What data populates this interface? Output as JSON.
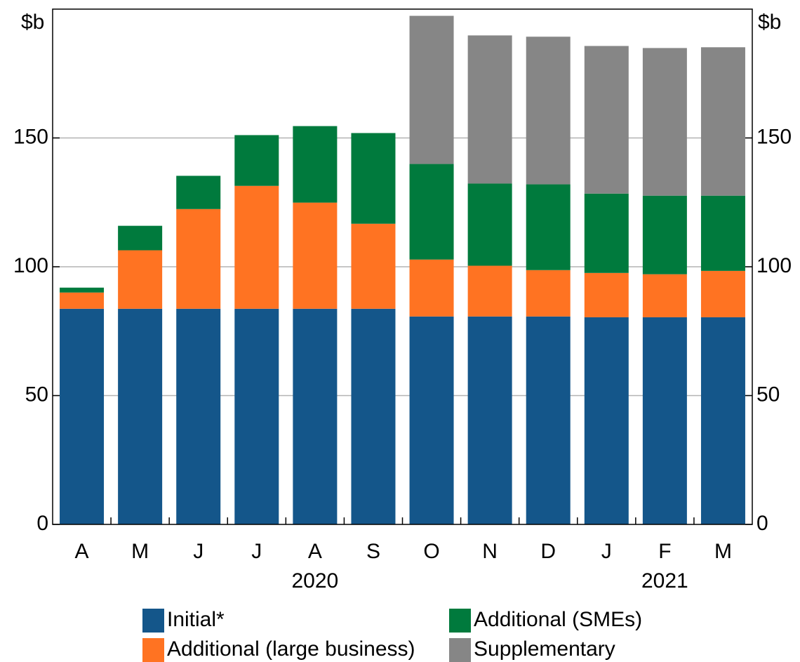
{
  "chart_data": {
    "type": "stacked_bar",
    "y_label": "$b",
    "categories": [
      "A",
      "M",
      "J",
      "J",
      "A",
      "S",
      "O",
      "N",
      "D",
      "J",
      "F",
      "M"
    ],
    "years": [
      null,
      null,
      null,
      null,
      "2020",
      null,
      null,
      null,
      null,
      null,
      "2021",
      null
    ],
    "series": [
      {
        "name": "Initial*",
        "color": "#14568a",
        "values": [
          83.7,
          83.7,
          83.7,
          83.7,
          83.7,
          83.7,
          80.7,
          80.7,
          80.7,
          80.4,
          80.4,
          80.4
        ]
      },
      {
        "name": "Additional (large business)",
        "color": "#ff7322",
        "values": [
          6.3,
          22.7,
          38.7,
          47.7,
          41.2,
          33,
          22.1,
          19.7,
          18,
          17.2,
          16.7,
          18
        ]
      },
      {
        "name": "Additional (SMEs)",
        "color": "#007a3d",
        "values": [
          1.9,
          9.5,
          12.9,
          19.7,
          29.7,
          35.2,
          37.1,
          31.9,
          33.3,
          30.8,
          30.5,
          29.2
        ]
      },
      {
        "name": "Supplementary",
        "color": "#868686",
        "values": [
          null,
          null,
          null,
          null,
          null,
          null,
          57.5,
          57.5,
          57.3,
          57.3,
          57.3,
          57.6
        ]
      }
    ],
    "ylim": [
      0,
      200
    ],
    "yticks": [
      0,
      50,
      100,
      150
    ],
    "grid": true,
    "legend_columns": 2
  }
}
